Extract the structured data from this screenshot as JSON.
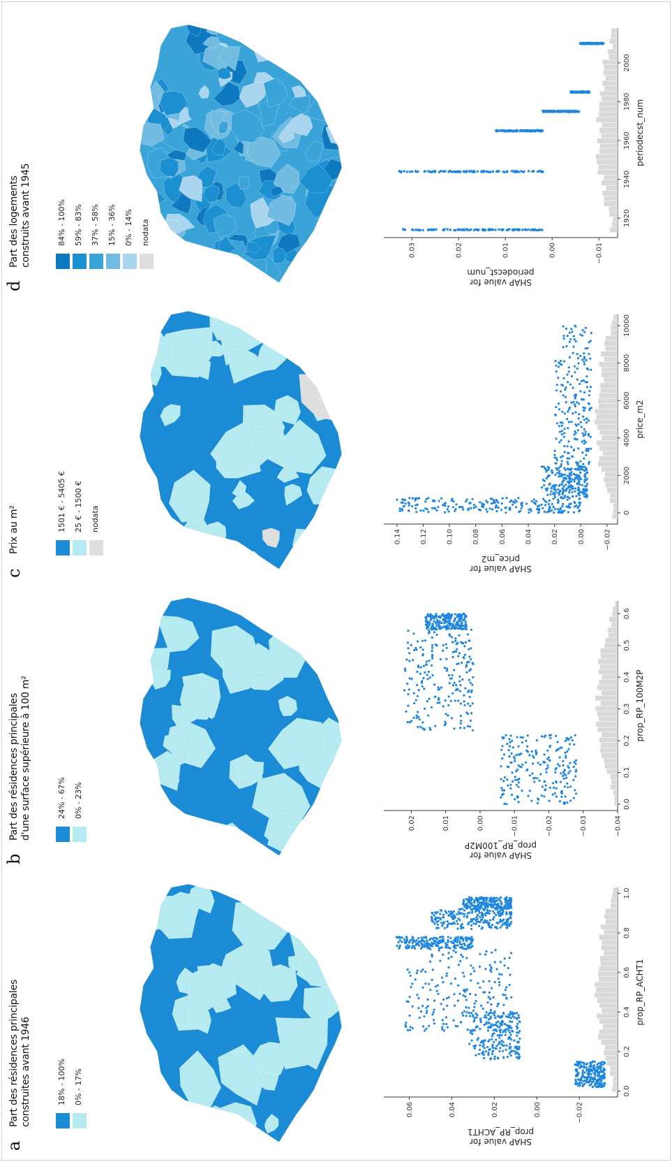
{
  "panels": [
    {
      "letter": "a",
      "title_lines": [
        "Part des résidences principales",
        "construites avant 1946"
      ],
      "legend": [
        {
          "label": "18% - 100%",
          "color": "#1a8bd4"
        },
        {
          "label": "0% - 17%",
          "color": "#b4eaf0"
        }
      ]
    },
    {
      "letter": "b",
      "title_lines": [
        "Part des résidences principales",
        "d'une surface supérieure à 100 m²"
      ],
      "legend": [
        {
          "label": "24% - 67%",
          "color": "#1a8bd4"
        },
        {
          "label": "0% - 23%",
          "color": "#b4eaf0"
        }
      ]
    },
    {
      "letter": "c",
      "title_lines": [
        "Prix au m²"
      ],
      "legend": [
        {
          "label": "1501 € - 5405 €",
          "color": "#1a8bd4"
        },
        {
          "label": "25 € - 1500 €",
          "color": "#b4eaf0"
        },
        {
          "label": "nodata",
          "color": "#dedede"
        }
      ]
    },
    {
      "letter": "d",
      "title_lines": [
        "Part des logements",
        "construits avant 1945"
      ],
      "legend": [
        {
          "label": "84% - 100%",
          "color": "#0f79c0"
        },
        {
          "label": "59% - 83%",
          "color": "#1c8fd0"
        },
        {
          "label": "37% - 58%",
          "color": "#3aa3d8"
        },
        {
          "label": "15% - 36%",
          "color": "#72bce2"
        },
        {
          "label": "0% - 14%",
          "color": "#a9d6ee"
        },
        {
          "label": "nodata",
          "color": "#dedede"
        }
      ]
    }
  ],
  "chart_data": [
    {
      "type": "scatter",
      "panel": "a",
      "xlabel": "prop_RP_ACHT1",
      "ylabel": "SHAP value for\nprop_RP_ACHT1",
      "xlim": [
        -0.03,
        1.03
      ],
      "ylim": [
        -0.038,
        0.072
      ],
      "xticks": [
        "0.0",
        "0.2",
        "0.4",
        "0.6",
        "0.8",
        "1.0"
      ],
      "yticks": [
        "−0.02",
        "0.00",
        "0.02",
        "0.04",
        "0.06"
      ],
      "color": "#1f86e0",
      "clusters": [
        {
          "x": [
            0.02,
            0.15
          ],
          "y": [
            -0.032,
            -0.018
          ]
        },
        {
          "x": [
            0.16,
            0.4
          ],
          "y": [
            0.008,
            0.032
          ]
        },
        {
          "x": [
            0.3,
            0.72
          ],
          "y": [
            0.012,
            0.062
          ]
        },
        {
          "x": [
            0.72,
            0.78
          ],
          "y": [
            0.03,
            0.066
          ]
        },
        {
          "x": [
            0.82,
            0.92
          ],
          "y": [
            0.012,
            0.05
          ]
        },
        {
          "x": [
            0.92,
            0.98
          ],
          "y": [
            0.012,
            0.035
          ]
        }
      ]
    },
    {
      "type": "scatter",
      "panel": "b",
      "xlabel": "prop_RP_100M2P",
      "ylabel": "SHAP value for\nprop_RP_100M2P",
      "xlim": [
        -0.02,
        0.64
      ],
      "ylim": [
        -0.04,
        0.028
      ],
      "xticks": [
        "0.0",
        "0.1",
        "0.2",
        "0.3",
        "0.4",
        "0.5",
        "0.6"
      ],
      "yticks": [
        "−0.04",
        "−0.03",
        "−0.02",
        "−0.01",
        "0.00",
        "0.01",
        "0.02"
      ],
      "color": "#1f86e0",
      "clusters": [
        {
          "x": [
            0.0,
            0.22
          ],
          "y": [
            -0.028,
            -0.006
          ]
        },
        {
          "x": [
            0.23,
            0.55
          ],
          "y": [
            0.002,
            0.022
          ]
        },
        {
          "x": [
            0.55,
            0.6
          ],
          "y": [
            0.004,
            0.016
          ]
        }
      ]
    },
    {
      "type": "scatter",
      "panel": "c",
      "xlabel": "price_m2",
      "ylabel": "SHAP value for\nprice_m2",
      "xlim": [
        -600,
        10600
      ],
      "ylim": [
        -0.028,
        0.15
      ],
      "xticks": [
        "0",
        "2000",
        "4000",
        "6000",
        "8000",
        "10000"
      ],
      "yticks": [
        "−0.02",
        "0.00",
        "0.02",
        "0.04",
        "0.06",
        "0.08",
        "0.10",
        "0.12",
        "0.14"
      ],
      "color": "#1f86e0",
      "clusters": [
        {
          "x": [
            0,
            800
          ],
          "y": [
            0.0,
            0.14
          ]
        },
        {
          "x": [
            800,
            2500
          ],
          "y": [
            -0.005,
            0.03
          ]
        },
        {
          "x": [
            2500,
            10000
          ],
          "y": [
            -0.008,
            0.02
          ]
        }
      ]
    },
    {
      "type": "scatter",
      "panel": "d",
      "xlabel": "periodecst_num",
      "ylabel": "SHAP value for\nperiodecst_num",
      "xlim": [
        1910,
        2018
      ],
      "ylim": [
        -0.014,
        0.036
      ],
      "xticks": [
        "1920",
        "1940",
        "1960",
        "1980",
        "2000"
      ],
      "yticks": [
        "−0.01",
        "0.00",
        "0.01",
        "0.02",
        "0.03"
      ],
      "color": "#1f86e0",
      "columns": [
        {
          "x": 1914,
          "ymin": 0.002,
          "ymax": 0.032
        },
        {
          "x": 1944,
          "ymin": 0.002,
          "ymax": 0.033
        },
        {
          "x": 1965,
          "ymin": 0.002,
          "ymax": 0.012
        },
        {
          "x": 1975,
          "ymin": -0.006,
          "ymax": 0.002
        },
        {
          "x": 1985,
          "ymin": -0.008,
          "ymax": -0.004
        },
        {
          "x": 2010,
          "ymin": -0.011,
          "ymax": -0.006
        }
      ]
    }
  ]
}
